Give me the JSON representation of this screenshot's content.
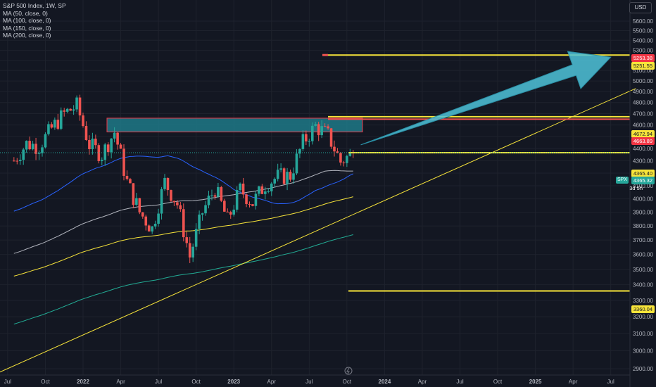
{
  "legend": {
    "title": "S&P 500 Index, 1W, SP",
    "ma": [
      "MA (50, close, 0)",
      "MA (100, close, 0)",
      "MA (150, close, 0)",
      "MA (200, close, 0)"
    ]
  },
  "currency": "USD",
  "symbol_tag": "SPX",
  "countdown": "3d 5h",
  "price_tags": [
    {
      "value": "5253.38",
      "bg": "#f23645",
      "fg": "#ffffff"
    },
    {
      "value": "5251.55",
      "bg": "#f7e43a",
      "fg": "#131722"
    },
    {
      "value": "4672.94",
      "bg": "#f7e43a",
      "fg": "#131722"
    },
    {
      "value": "4663.89",
      "bg": "#f23645",
      "fg": "#ffffff"
    },
    {
      "value": "4365.40",
      "bg": "#f7e43a",
      "fg": "#131722"
    },
    {
      "value": "4365.32",
      "bg": "#26a69a",
      "fg": "#ffffff"
    },
    {
      "value": "3360.04",
      "bg": "#f7e43a",
      "fg": "#131722"
    }
  ],
  "colors": {
    "background": "#131722",
    "up": "#26a69a",
    "down": "#ef5350",
    "grid": "#1e222d",
    "ma50": "#2962ff",
    "ma100": "#b2b5be",
    "ma150": "#f7e43a",
    "ma200": "#22ab94",
    "horizontal_line": "#f7e43a",
    "zone_fill": "#1f7f8f",
    "zone_border": "#f23645",
    "arrow": "#4fc3d9"
  },
  "chart_data": {
    "type": "candlestick",
    "title": "S&P 500 Index, 1W, SP",
    "interval": "1W",
    "yscale": "log",
    "ylim": [
      2820,
      5850
    ],
    "x_tick_labels": [
      "Jul",
      "Oct",
      "2022",
      "Apr",
      "Jul",
      "Oct",
      "2023",
      "Apr",
      "Jul",
      "Oct",
      "2024",
      "Apr",
      "Jul",
      "Oct",
      "2025",
      "Apr",
      "Jul"
    ],
    "y_tick_labels": [
      "5600.00",
      "5500.00",
      "5400.00",
      "5300.00",
      "5200.00",
      "5100.00",
      "5000.00",
      "4900.00",
      "4800.00",
      "4700.00",
      "4600.00",
      "4500.00",
      "4400.00",
      "4300.00",
      "4200.00",
      "4100.00",
      "4000.00",
      "3900.00",
      "3800.00",
      "3700.00",
      "3600.00",
      "3500.00",
      "3400.00",
      "3300.00",
      "3200.00",
      "3100.00",
      "3000.00",
      "2900.00"
    ],
    "last_close": 4365.32,
    "weekly_close_approx": [
      {
        "x": "2021-07",
        "c": 4300
      },
      {
        "x": "2021-08",
        "c": 4440
      },
      {
        "x": "2021-09",
        "c": 4420
      },
      {
        "x": "2021-10",
        "c": 4570
      },
      {
        "x": "2021-11",
        "c": 4700
      },
      {
        "x": "2021-12",
        "c": 4770
      },
      {
        "x": "2022-01",
        "c": 4430
      },
      {
        "x": "2022-02",
        "c": 4350
      },
      {
        "x": "2022-03",
        "c": 4540
      },
      {
        "x": "2022-04",
        "c": 4130
      },
      {
        "x": "2022-05",
        "c": 3900
      },
      {
        "x": "2022-06",
        "c": 3780
      },
      {
        "x": "2022-07",
        "c": 4130
      },
      {
        "x": "2022-08",
        "c": 3960
      },
      {
        "x": "2022-09",
        "c": 3585
      },
      {
        "x": "2022-10",
        "c": 3900
      },
      {
        "x": "2022-11",
        "c": 4080
      },
      {
        "x": "2022-12",
        "c": 3840
      },
      {
        "x": "2023-01",
        "c": 4070
      },
      {
        "x": "2023-02",
        "c": 3970
      },
      {
        "x": "2023-03",
        "c": 4110
      },
      {
        "x": "2023-04",
        "c": 4170
      },
      {
        "x": "2023-05",
        "c": 4180
      },
      {
        "x": "2023-06",
        "c": 4450
      },
      {
        "x": "2023-07",
        "c": 4590
      },
      {
        "x": "2023-08",
        "c": 4510
      },
      {
        "x": "2023-09",
        "c": 4290
      },
      {
        "x": "2023-10",
        "c": 4365
      }
    ],
    "annotations": {
      "horizontal_lines": [
        5251.55,
        4672.94,
        4365.4,
        3360.04
      ],
      "zone": {
        "top": 4660,
        "bottom": 4540,
        "from": "2022-01",
        "to": "2023-09"
      },
      "arrow": {
        "from": {
          "x": "2023-12",
          "y": 4430
        },
        "to": {
          "x": "2025-07",
          "y": 5230
        }
      },
      "trendline": {
        "from": {
          "x": "2021-06",
          "y": 2870
        },
        "to": {
          "x": "2025-09",
          "y": 4930
        }
      }
    }
  }
}
